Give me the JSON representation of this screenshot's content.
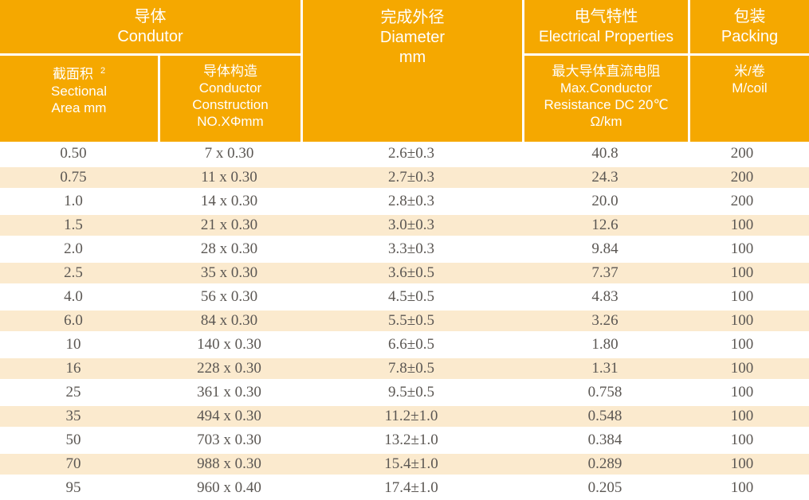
{
  "header": {
    "conductor_zh": "导体",
    "conductor_en": "Condutor",
    "sectional_zh": "截面积",
    "sectional_sup": "2",
    "sectional_en1": "Sectional",
    "sectional_en2": "Area mm",
    "construction_zh": "导体构造",
    "construction_en1": "Conductor",
    "construction_en2": "Construction",
    "construction_en3": "NO.XΦmm",
    "diameter_zh": "完成外径",
    "diameter_en": "Diameter",
    "diameter_unit": "mm",
    "electrical_zh": "电气特性",
    "electrical_en": "Electrical Properties",
    "resistance_zh": "最大导体直流电阻",
    "resistance_en1": "Max.Conductor",
    "resistance_en2": "Resistance DC 20℃",
    "resistance_en3": "Ω/km",
    "packing_zh": "包装",
    "packing_en": "Packing",
    "coil_zh": "米/卷",
    "coil_en": "M/coil"
  },
  "columns": [
    "sectional_area",
    "conductor_construction",
    "diameter",
    "max_resistance",
    "meters_per_coil"
  ],
  "rows": [
    [
      "0.50",
      "7 x 0.30",
      "2.6±0.3",
      "40.8",
      "200"
    ],
    [
      "0.75",
      "11 x 0.30",
      "2.7±0.3",
      "24.3",
      "200"
    ],
    [
      "1.0",
      "14 x 0.30",
      "2.8±0.3",
      "20.0",
      "200"
    ],
    [
      "1.5",
      "21 x 0.30",
      "3.0±0.3",
      "12.6",
      "100"
    ],
    [
      "2.0",
      "28 x 0.30",
      "3.3±0.3",
      "9.84",
      "100"
    ],
    [
      "2.5",
      "35 x 0.30",
      "3.6±0.5",
      "7.37",
      "100"
    ],
    [
      "4.0",
      "56 x 0.30",
      "4.5±0.5",
      "4.83",
      "100"
    ],
    [
      "6.0",
      "84 x 0.30",
      "5.5±0.5",
      "3.26",
      "100"
    ],
    [
      "10",
      "140 x 0.30",
      "6.6±0.5",
      "1.80",
      "100"
    ],
    [
      "16",
      "228 x 0.30",
      "7.8±0.5",
      "1.31",
      "100"
    ],
    [
      "25",
      "361 x 0.30",
      "9.5±0.5",
      "0.758",
      "100"
    ],
    [
      "35",
      "494 x 0.30",
      "11.2±1.0",
      "0.548",
      "100"
    ],
    [
      "50",
      "703 x 0.30",
      "13.2±1.0",
      "0.384",
      "100"
    ],
    [
      "70",
      "988 x 0.30",
      "15.4±1.0",
      "0.289",
      "100"
    ],
    [
      "95",
      "960 x 0.40",
      "17.4±1.0",
      "0.205",
      "100"
    ]
  ],
  "colors": {
    "header_bg": "#F5A800",
    "stripe_bg": "#FBEACE",
    "data_text": "#5B5753",
    "header_text": "#FFFFFF"
  }
}
